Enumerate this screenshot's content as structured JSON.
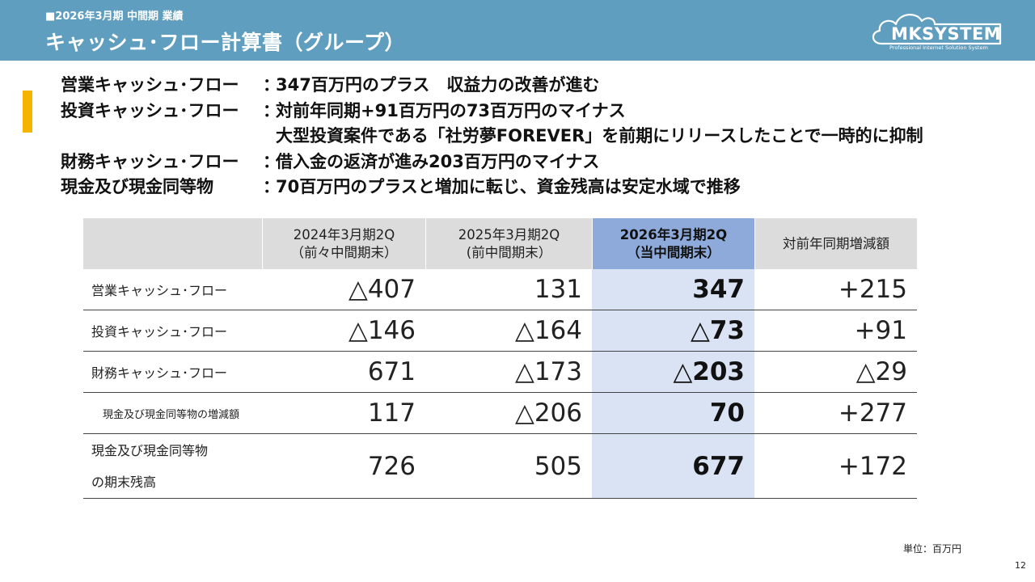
{
  "header": {
    "subtitle": "■2026年3月期 中間期 業績",
    "title": "キャッシュ･フロー計算書（グループ）"
  },
  "logo": {
    "name": "MKSYSTEM",
    "tagline": "Professional Internet Solution System"
  },
  "summary": [
    {
      "label": "営業キャッシュ･フロー",
      "colon": "：",
      "text": "347百万円のプラス　収益力の改善が進む"
    },
    {
      "label": "投資キャッシュ･フロー",
      "colon": "：",
      "text": "対前年同期+91百万円の73百万円のマイナス"
    },
    {
      "continuation": "大型投資案件である「社労夢FOREVER」を前期にリリースしたことで一時的に抑制"
    },
    {
      "label": "財務キャッシュ･フロー",
      "colon": "：",
      "text": "借入金の返済が進み203百万円のマイナス"
    },
    {
      "label": "現金及び現金同等物",
      "colon": "：",
      "text": "70百万円のプラスと増加に転じ、資金残高は安定水域で推移"
    }
  ],
  "table": {
    "headers": [
      {
        "line1": "",
        "line2": ""
      },
      {
        "line1": "2024年3月期2Q",
        "line2": "（前々中間期末）"
      },
      {
        "line1": "2025年3月期2Q",
        "line2": "(前中間期末）"
      },
      {
        "line1": "2026年3月期2Q",
        "line2": "（当中間期末）"
      },
      {
        "line1": "対前年同期増減額",
        "line2": ""
      }
    ],
    "rows": [
      {
        "label": "営業キャッシュ･フロー",
        "values": [
          "△407",
          "131",
          "347",
          "+215"
        ]
      },
      {
        "label": "投資キャッシュ･フロー",
        "values": [
          "△146",
          "△164",
          "△73",
          "+91"
        ]
      },
      {
        "label": "財務キャッシュ･フロー",
        "values": [
          "671",
          "△173",
          "△203",
          "△29"
        ]
      },
      {
        "label": "現金及び現金同等物の増減額",
        "values": [
          "117",
          "△206",
          "70",
          "+277"
        ]
      },
      {
        "label_line1": "現金及び現金同等物",
        "label_line2": "の期末残高",
        "values": [
          "726",
          "505",
          "677",
          "+172"
        ]
      }
    ]
  },
  "unit_note": "単位：百万円",
  "page_number": "12",
  "colors": {
    "header_bg": "#5f9ebe",
    "accent": "#f4b400",
    "highlight_header": "#8eaadb",
    "highlight_cell": "#dae3f3",
    "table_header_bg": "#dcdcdc"
  }
}
